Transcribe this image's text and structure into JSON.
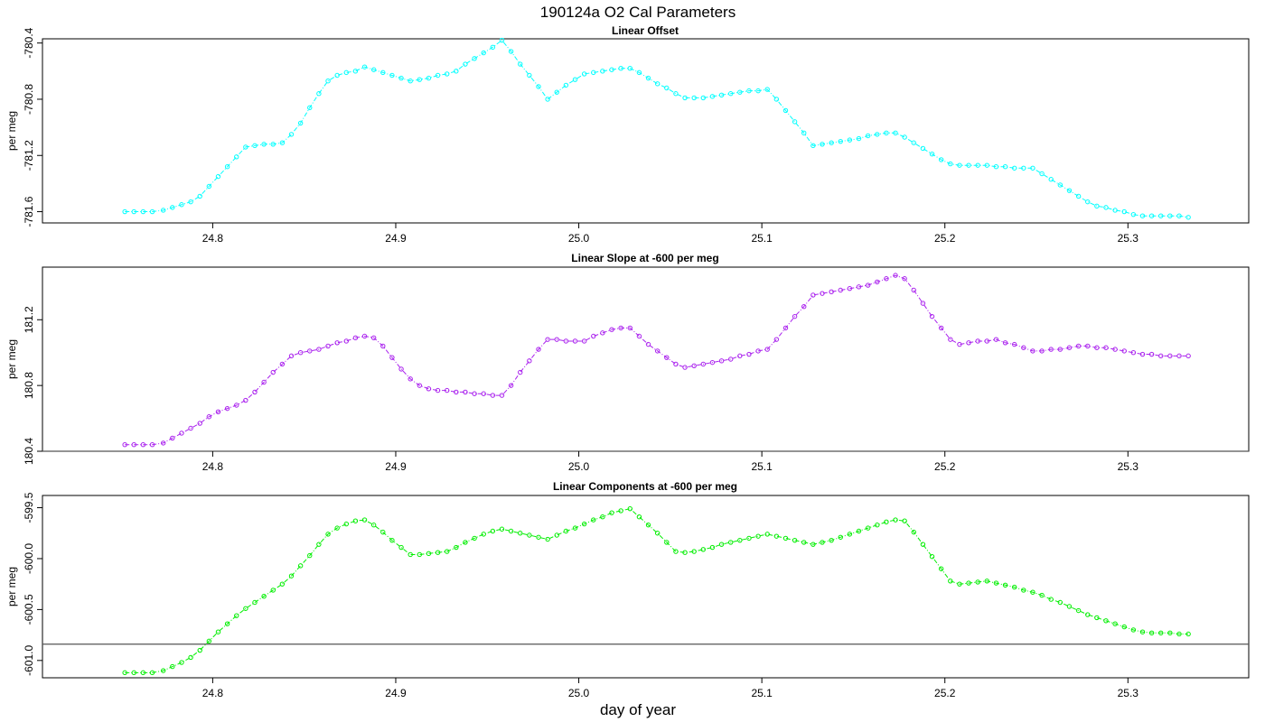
{
  "figure": {
    "title": "190124a   O2 Cal Parameters",
    "xlabel": "day of year"
  },
  "chart_data": [
    {
      "type": "line",
      "title": "Linear Offset",
      "xlabel": "",
      "ylabel": "per meg",
      "color": "#00ffff",
      "xlim": [
        24.707,
        25.366
      ],
      "ylim": [
        -781.68,
        -780.37
      ],
      "xticks": [
        24.8,
        24.9,
        25.0,
        25.1,
        25.2,
        25.3
      ],
      "xtick_labels": [
        "24.8",
        "24.9",
        "25.0",
        "25.1",
        "25.2",
        "25.3"
      ],
      "yticks": [
        -781.6,
        -781.2,
        -780.8,
        -780.4
      ],
      "ytick_labels": [
        "-781.6",
        "-781.2",
        "-780.8",
        "-780.4"
      ],
      "reference_line": null,
      "series": [
        {
          "x": [
            24.752,
            24.757,
            24.762,
            24.767,
            24.773,
            24.778,
            24.783,
            24.788,
            24.793,
            24.798,
            24.803,
            24.808,
            24.813,
            24.818,
            24.823,
            24.828,
            24.833,
            24.838,
            24.843,
            24.848,
            24.853,
            24.858,
            24.863,
            24.868,
            24.873,
            24.878,
            24.883,
            24.888,
            24.893,
            24.898,
            24.903,
            24.908,
            24.913,
            24.918,
            24.923,
            24.928,
            24.933,
            24.938,
            24.943,
            24.948,
            24.953,
            24.958,
            24.963,
            24.968,
            24.973,
            24.978,
            24.983,
            24.988,
            24.993,
            24.998,
            25.003,
            25.008,
            25.013,
            25.018,
            25.023,
            25.028,
            25.033,
            25.038,
            25.043,
            25.048,
            25.053,
            25.058,
            25.063,
            25.068,
            25.073,
            25.078,
            25.083,
            25.088,
            25.093,
            25.098,
            25.103,
            25.108,
            25.113,
            25.118,
            25.123,
            25.128,
            25.133,
            25.138,
            25.143,
            25.148,
            25.153,
            25.158,
            25.163,
            25.168,
            25.173,
            25.178,
            25.183,
            25.188,
            25.193,
            25.198,
            25.203,
            25.208,
            25.213,
            25.218,
            25.223,
            25.228,
            25.233,
            25.238,
            25.243,
            25.248,
            25.253,
            25.258,
            25.263,
            25.268,
            25.273,
            25.278,
            25.283,
            25.288,
            25.293,
            25.298,
            25.303,
            25.308,
            25.313,
            25.318,
            25.323,
            25.328,
            25.333
          ],
          "y": [
            -781.6,
            -781.6,
            -781.6,
            -781.6,
            -781.59,
            -781.57,
            -781.55,
            -781.53,
            -781.49,
            -781.42,
            -781.35,
            -781.28,
            -781.21,
            -781.14,
            -781.13,
            -781.12,
            -781.12,
            -781.11,
            -781.05,
            -780.97,
            -780.86,
            -780.76,
            -780.67,
            -780.63,
            -780.61,
            -780.6,
            -780.57,
            -780.59,
            -780.61,
            -780.63,
            -780.65,
            -780.67,
            -780.66,
            -780.65,
            -780.63,
            -780.62,
            -780.6,
            -780.55,
            -780.51,
            -780.47,
            -780.43,
            -780.38,
            -780.46,
            -780.55,
            -780.63,
            -780.71,
            -780.8,
            -780.75,
            -780.7,
            -780.66,
            -780.62,
            -780.61,
            -780.6,
            -780.59,
            -780.58,
            -780.58,
            -780.61,
            -780.65,
            -780.69,
            -780.72,
            -780.76,
            -780.79,
            -780.79,
            -780.79,
            -780.78,
            -780.77,
            -780.76,
            -780.75,
            -780.74,
            -780.74,
            -780.73,
            -780.8,
            -780.88,
            -780.96,
            -781.04,
            -781.13,
            -781.12,
            -781.11,
            -781.1,
            -781.09,
            -781.08,
            -781.06,
            -781.05,
            -781.04,
            -781.04,
            -781.07,
            -781.11,
            -781.15,
            -781.19,
            -781.23,
            -781.26,
            -781.27,
            -781.27,
            -781.27,
            -781.27,
            -781.28,
            -781.28,
            -781.29,
            -781.29,
            -781.29,
            -781.33,
            -781.37,
            -781.41,
            -781.45,
            -781.49,
            -781.53,
            -781.56,
            -781.57,
            -781.59,
            -781.6,
            -781.62,
            -781.63,
            -781.63,
            -781.63,
            -781.63,
            -781.63,
            -781.64
          ]
        }
      ]
    },
    {
      "type": "line",
      "title": "Linear Slope at -600 per meg",
      "xlabel": "",
      "ylabel": "per meg",
      "color": "#aa22ee",
      "xlim": [
        24.707,
        25.366
      ],
      "ylim": [
        180.4,
        181.52
      ],
      "xticks": [
        24.8,
        24.9,
        25.0,
        25.1,
        25.2,
        25.3
      ],
      "xtick_labels": [
        "24.8",
        "24.9",
        "25.0",
        "25.1",
        "25.2",
        "25.3"
      ],
      "yticks": [
        180.4,
        180.8,
        181.2
      ],
      "ytick_labels": [
        "180.4",
        "180.8",
        "181.2"
      ],
      "reference_line": 180.4,
      "series": [
        {
          "x": [
            24.752,
            24.757,
            24.762,
            24.767,
            24.773,
            24.778,
            24.783,
            24.788,
            24.793,
            24.798,
            24.803,
            24.808,
            24.813,
            24.818,
            24.823,
            24.828,
            24.833,
            24.838,
            24.843,
            24.848,
            24.853,
            24.858,
            24.863,
            24.868,
            24.873,
            24.878,
            24.883,
            24.888,
            24.893,
            24.898,
            24.903,
            24.908,
            24.913,
            24.918,
            24.923,
            24.928,
            24.933,
            24.938,
            24.943,
            24.948,
            24.953,
            24.958,
            24.963,
            24.968,
            24.973,
            24.978,
            24.983,
            24.988,
            24.993,
            24.998,
            25.003,
            25.008,
            25.013,
            25.018,
            25.023,
            25.028,
            25.033,
            25.038,
            25.043,
            25.048,
            25.053,
            25.058,
            25.063,
            25.068,
            25.073,
            25.078,
            25.083,
            25.088,
            25.093,
            25.098,
            25.103,
            25.108,
            25.113,
            25.118,
            25.123,
            25.128,
            25.133,
            25.138,
            25.143,
            25.148,
            25.153,
            25.158,
            25.163,
            25.168,
            25.173,
            25.178,
            25.183,
            25.188,
            25.193,
            25.198,
            25.203,
            25.208,
            25.213,
            25.218,
            25.223,
            25.228,
            25.233,
            25.238,
            25.243,
            25.248,
            25.253,
            25.258,
            25.263,
            25.268,
            25.273,
            25.278,
            25.283,
            25.288,
            25.293,
            25.298,
            25.303,
            25.308,
            25.313,
            25.318,
            25.323,
            25.328,
            25.333
          ],
          "y": [
            180.44,
            180.44,
            180.44,
            180.44,
            180.45,
            180.48,
            180.51,
            180.54,
            180.57,
            180.61,
            180.64,
            180.66,
            180.68,
            180.71,
            180.76,
            180.82,
            180.88,
            180.93,
            180.98,
            181.0,
            181.01,
            181.02,
            181.04,
            181.06,
            181.07,
            181.09,
            181.1,
            181.09,
            181.04,
            180.97,
            180.9,
            180.84,
            180.8,
            180.78,
            180.77,
            180.77,
            180.76,
            180.76,
            180.75,
            180.75,
            180.74,
            180.74,
            180.8,
            180.88,
            180.95,
            181.02,
            181.08,
            181.08,
            181.07,
            181.07,
            181.07,
            181.1,
            181.12,
            181.14,
            181.15,
            181.15,
            181.1,
            181.05,
            181.01,
            180.97,
            180.93,
            180.91,
            180.92,
            180.93,
            180.94,
            180.95,
            180.96,
            180.98,
            180.99,
            181.01,
            181.02,
            181.08,
            181.15,
            181.22,
            181.28,
            181.35,
            181.36,
            181.37,
            181.38,
            181.39,
            181.4,
            181.41,
            181.43,
            181.45,
            181.47,
            181.45,
            181.38,
            181.3,
            181.22,
            181.15,
            181.08,
            181.05,
            181.06,
            181.07,
            181.07,
            181.08,
            181.06,
            181.05,
            181.03,
            181.01,
            181.01,
            181.02,
            181.02,
            181.03,
            181.04,
            181.04,
            181.03,
            181.03,
            181.02,
            181.01,
            181.0,
            180.99,
            180.99,
            180.98,
            180.98,
            180.98,
            180.98
          ]
        }
      ]
    },
    {
      "type": "line",
      "title": "Linear Components at -600 per meg",
      "xlabel": "",
      "ylabel": "per meg",
      "color": "#00ee00",
      "xlim": [
        24.707,
        25.366
      ],
      "ylim": [
        -601.17,
        -599.38
      ],
      "xticks": [
        24.8,
        24.9,
        25.0,
        25.1,
        25.2,
        25.3
      ],
      "xtick_labels": [
        "24.8",
        "24.9",
        "25.0",
        "25.1",
        "25.2",
        "25.3"
      ],
      "yticks": [
        -601.0,
        -600.5,
        -600.0,
        -599.5
      ],
      "ytick_labels": [
        "-601.0",
        "-600.5",
        "-600.0",
        "-599.5"
      ],
      "reference_line": -600.84,
      "series": [
        {
          "x": [
            24.752,
            24.757,
            24.762,
            24.767,
            24.773,
            24.778,
            24.783,
            24.788,
            24.793,
            24.798,
            24.803,
            24.808,
            24.813,
            24.818,
            24.823,
            24.828,
            24.833,
            24.838,
            24.843,
            24.848,
            24.853,
            24.858,
            24.863,
            24.868,
            24.873,
            24.878,
            24.883,
            24.888,
            24.893,
            24.898,
            24.903,
            24.908,
            24.913,
            24.918,
            24.923,
            24.928,
            24.933,
            24.938,
            24.943,
            24.948,
            24.953,
            24.958,
            24.963,
            24.968,
            24.973,
            24.978,
            24.983,
            24.988,
            24.993,
            24.998,
            25.003,
            25.008,
            25.013,
            25.018,
            25.023,
            25.028,
            25.033,
            25.038,
            25.043,
            25.048,
            25.053,
            25.058,
            25.063,
            25.068,
            25.073,
            25.078,
            25.083,
            25.088,
            25.093,
            25.098,
            25.103,
            25.108,
            25.113,
            25.118,
            25.123,
            25.128,
            25.133,
            25.138,
            25.143,
            25.148,
            25.153,
            25.158,
            25.163,
            25.168,
            25.173,
            25.178,
            25.183,
            25.188,
            25.193,
            25.198,
            25.203,
            25.208,
            25.213,
            25.218,
            25.223,
            25.228,
            25.233,
            25.238,
            25.243,
            25.248,
            25.253,
            25.258,
            25.263,
            25.268,
            25.273,
            25.278,
            25.283,
            25.288,
            25.293,
            25.298,
            25.303,
            25.308,
            25.313,
            25.318,
            25.323,
            25.328,
            25.333
          ],
          "y": [
            -601.12,
            -601.12,
            -601.12,
            -601.12,
            -601.1,
            -601.06,
            -601.02,
            -600.97,
            -600.9,
            -600.81,
            -600.72,
            -600.64,
            -600.56,
            -600.49,
            -600.43,
            -600.37,
            -600.31,
            -600.25,
            -600.17,
            -600.07,
            -599.97,
            -599.86,
            -599.76,
            -599.7,
            -599.66,
            -599.63,
            -599.62,
            -599.67,
            -599.74,
            -599.82,
            -599.89,
            -599.96,
            -599.96,
            -599.95,
            -599.94,
            -599.93,
            -599.89,
            -599.84,
            -599.8,
            -599.76,
            -599.73,
            -599.71,
            -599.73,
            -599.75,
            -599.77,
            -599.79,
            -599.81,
            -599.77,
            -599.73,
            -599.7,
            -599.66,
            -599.62,
            -599.59,
            -599.55,
            -599.53,
            -599.51,
            -599.59,
            -599.67,
            -599.75,
            -599.84,
            -599.93,
            -599.94,
            -599.93,
            -599.91,
            -599.89,
            -599.86,
            -599.84,
            -599.82,
            -599.8,
            -599.78,
            -599.76,
            -599.78,
            -599.8,
            -599.82,
            -599.84,
            -599.86,
            -599.84,
            -599.82,
            -599.79,
            -599.76,
            -599.73,
            -599.7,
            -599.67,
            -599.64,
            -599.62,
            -599.63,
            -599.74,
            -599.86,
            -599.98,
            -600.1,
            -600.22,
            -600.25,
            -600.24,
            -600.23,
            -600.22,
            -600.24,
            -600.26,
            -600.28,
            -600.31,
            -600.33,
            -600.36,
            -600.4,
            -600.43,
            -600.47,
            -600.51,
            -600.55,
            -600.58,
            -600.61,
            -600.64,
            -600.67,
            -600.7,
            -600.72,
            -600.73,
            -600.73,
            -600.73,
            -600.74,
            -600.74
          ]
        }
      ]
    }
  ]
}
